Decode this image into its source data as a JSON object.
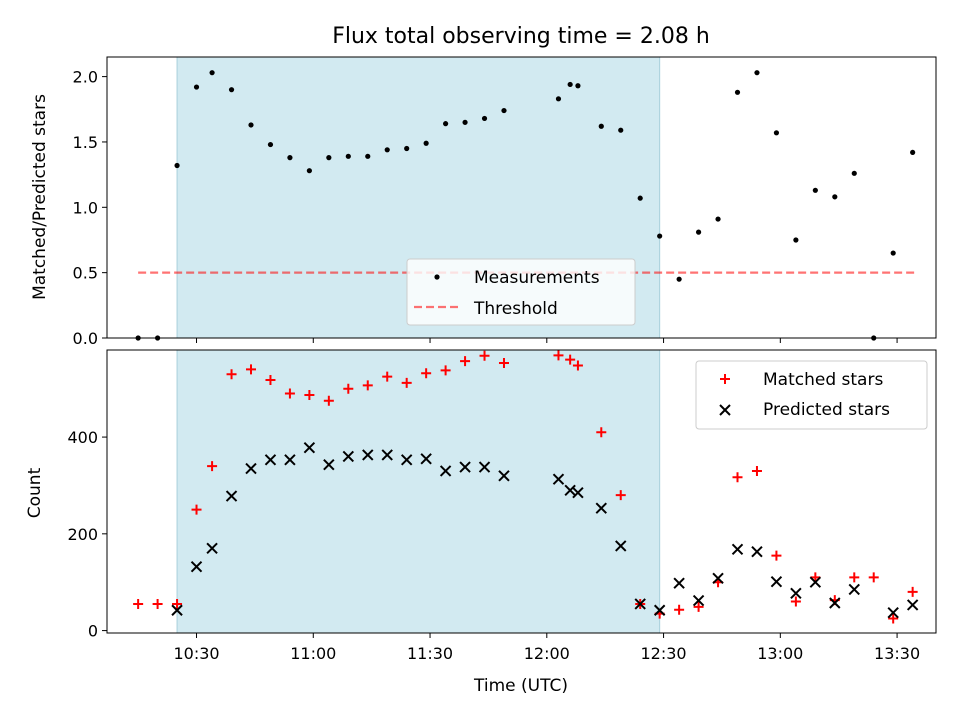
{
  "figure": {
    "title": "Flux total observing time = 2.08 h",
    "xlabel": "Time (UTC)",
    "colors": {
      "shade": "#add8e6",
      "matched": "#ff0000",
      "predicted": "#000000",
      "threshold": "#ff0000",
      "measurement": "#000000"
    }
  },
  "chart_data": [
    {
      "type": "scatter",
      "panel": "top",
      "ylabel": "Matched/Predicted stars",
      "xlim": [
        "10:07",
        "13:40"
      ],
      "ylim": [
        0,
        2.15
      ],
      "yticks": [
        "0.0",
        "0.5",
        "1.0",
        "1.5",
        "2.0"
      ],
      "shaded_interval": [
        "10:25",
        "12:29"
      ],
      "legend": {
        "placement": "lower-center",
        "entries": [
          "Measurements",
          "Threshold"
        ]
      },
      "series": [
        {
          "name": "Measurements",
          "x": [
            "10:15",
            "10:20",
            "10:25",
            "10:30",
            "10:34",
            "10:39",
            "10:44",
            "10:49",
            "10:54",
            "10:59",
            "11:04",
            "11:09",
            "11:14",
            "11:19",
            "11:24",
            "11:29",
            "11:34",
            "11:39",
            "11:44",
            "11:49",
            "12:03",
            "12:06",
            "12:08",
            "12:14",
            "12:19",
            "12:24",
            "12:29",
            "12:34",
            "12:39",
            "12:44",
            "12:49",
            "12:54",
            "12:59",
            "13:04",
            "13:09",
            "13:14",
            "13:19",
            "13:24",
            "13:29",
            "13:34"
          ],
          "y": [
            0.0,
            0.0,
            1.32,
            1.92,
            2.03,
            1.9,
            1.63,
            1.48,
            1.38,
            1.28,
            1.38,
            1.39,
            1.39,
            1.44,
            1.45,
            1.49,
            1.64,
            1.65,
            1.68,
            1.74,
            1.83,
            1.94,
            1.93,
            1.62,
            1.59,
            1.07,
            0.78,
            0.45,
            0.81,
            0.91,
            1.88,
            2.03,
            1.57,
            0.75,
            1.13,
            1.08,
            1.26,
            0.0,
            0.65,
            1.42
          ]
        },
        {
          "name": "Threshold",
          "x": [
            "10:15",
            "13:35"
          ],
          "y": [
            0.5,
            0.5
          ]
        }
      ]
    },
    {
      "type": "scatter",
      "panel": "bottom",
      "ylabel": "Count",
      "xlim": [
        "10:07",
        "13:40"
      ],
      "ylim": [
        -5,
        580
      ],
      "yticks": [
        "0",
        "200",
        "400"
      ],
      "xticks": [
        "10:30",
        "11:00",
        "11:30",
        "12:00",
        "12:30",
        "13:00",
        "13:30"
      ],
      "shaded_interval": [
        "10:25",
        "12:29"
      ],
      "legend": {
        "placement": "top-right",
        "entries": [
          "Matched stars",
          "Predicted stars"
        ]
      },
      "series": [
        {
          "name": "Matched stars",
          "x": [
            "10:15",
            "10:20",
            "10:25",
            "10:30",
            "10:34",
            "10:39",
            "10:44",
            "10:49",
            "10:54",
            "10:59",
            "11:04",
            "11:09",
            "11:14",
            "11:19",
            "11:24",
            "11:29",
            "11:34",
            "11:39",
            "11:44",
            "11:49",
            "12:03",
            "12:06",
            "12:08",
            "12:14",
            "12:19",
            "12:24",
            "12:29",
            "12:34",
            "12:39",
            "12:44",
            "12:49",
            "12:54",
            "12:59",
            "13:04",
            "13:09",
            "13:14",
            "13:19",
            "13:24",
            "13:29",
            "13:34"
          ],
          "y": [
            55,
            55,
            55,
            250,
            340,
            530,
            540,
            518,
            490,
            487,
            475,
            500,
            507,
            525,
            512,
            532,
            538,
            557,
            568,
            553,
            569,
            560,
            548,
            410,
            280,
            55,
            35,
            43,
            49,
            100,
            317,
            330,
            155,
            60,
            110,
            63,
            110,
            110,
            25,
            80
          ]
        },
        {
          "name": "Predicted stars",
          "x": [
            "10:25",
            "10:30",
            "10:34",
            "10:39",
            "10:44",
            "10:49",
            "10:54",
            "10:59",
            "11:04",
            "11:09",
            "11:14",
            "11:19",
            "11:24",
            "11:29",
            "11:34",
            "11:39",
            "11:44",
            "11:49",
            "12:03",
            "12:06",
            "12:08",
            "12:14",
            "12:19",
            "12:24",
            "12:29",
            "12:34",
            "12:39",
            "12:44",
            "12:49",
            "12:54",
            "12:59",
            "13:04",
            "13:09",
            "13:14",
            "13:19",
            "13:29",
            "13:34"
          ],
          "y": [
            42,
            132,
            170,
            278,
            335,
            353,
            353,
            378,
            343,
            360,
            363,
            363,
            353,
            355,
            330,
            338,
            338,
            320,
            313,
            290,
            285,
            253,
            175,
            55,
            42,
            98,
            62,
            108,
            168,
            163,
            101,
            77,
            100,
            57,
            85,
            37,
            53
          ]
        }
      ]
    }
  ]
}
